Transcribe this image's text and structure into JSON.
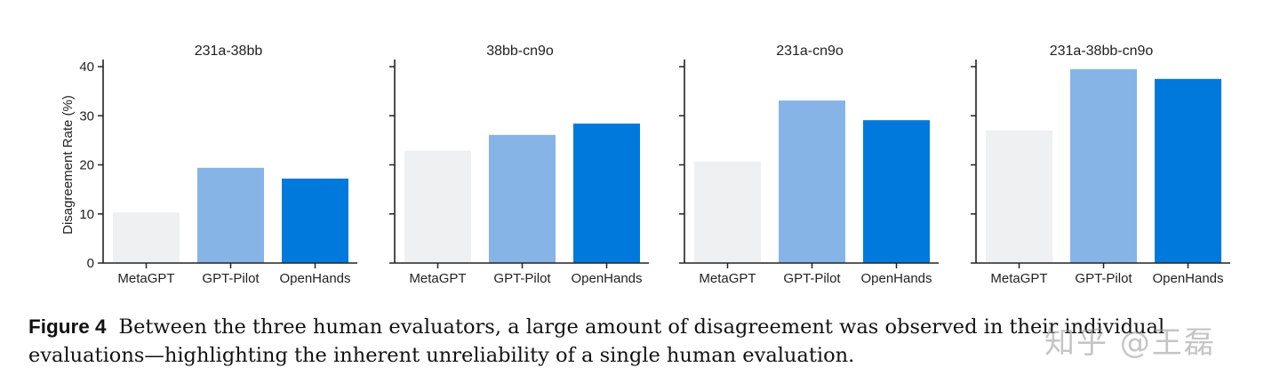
{
  "chart_data": [
    {
      "type": "bar",
      "title": "231a-38bb",
      "categories": [
        "MetaGPT",
        "GPT-Pilot",
        "OpenHands"
      ],
      "values": [
        10.3,
        19.4,
        17.2
      ],
      "ylabel": "Disagreement Rate (%)",
      "xlabel": "",
      "ylim": [
        0,
        40
      ],
      "yticks": [
        0,
        10,
        20,
        30,
        40
      ],
      "show_ytick_labels": true,
      "colors": [
        "#eff0f2",
        "#86b4e6",
        "#0079dd"
      ],
      "grid": false
    },
    {
      "type": "bar",
      "title": "38bb-cn9o",
      "categories": [
        "MetaGPT",
        "GPT-Pilot",
        "OpenHands"
      ],
      "values": [
        22.9,
        26.1,
        28.4
      ],
      "ylabel": "",
      "xlabel": "",
      "ylim": [
        0,
        40
      ],
      "yticks": [
        0,
        10,
        20,
        30,
        40
      ],
      "show_ytick_labels": false,
      "colors": [
        "#eff0f2",
        "#86b4e6",
        "#0079dd"
      ],
      "grid": false
    },
    {
      "type": "bar",
      "title": "231a-cn9o",
      "categories": [
        "MetaGPT",
        "GPT-Pilot",
        "OpenHands"
      ],
      "values": [
        20.7,
        33.1,
        29.1
      ],
      "ylabel": "",
      "xlabel": "",
      "ylim": [
        0,
        40
      ],
      "yticks": [
        0,
        10,
        20,
        30,
        40
      ],
      "show_ytick_labels": false,
      "colors": [
        "#eff0f2",
        "#86b4e6",
        "#0079dd"
      ],
      "grid": false
    },
    {
      "type": "bar",
      "title": "231a-38bb-cn9o",
      "categories": [
        "MetaGPT",
        "GPT-Pilot",
        "OpenHands"
      ],
      "values": [
        27.0,
        39.5,
        37.5
      ],
      "ylabel": "",
      "xlabel": "",
      "ylim": [
        0,
        40
      ],
      "yticks": [
        0,
        10,
        20,
        30,
        40
      ],
      "show_ytick_labels": false,
      "colors": [
        "#eff0f2",
        "#86b4e6",
        "#0079dd"
      ],
      "grid": false
    }
  ],
  "caption": {
    "label": "Figure 4",
    "text": "Between the three human evaluators, a large amount of disagreement was observed in their individual evaluations—highlighting the inherent unreliability of a single human evaluation."
  },
  "watermark": "知乎 @王磊"
}
